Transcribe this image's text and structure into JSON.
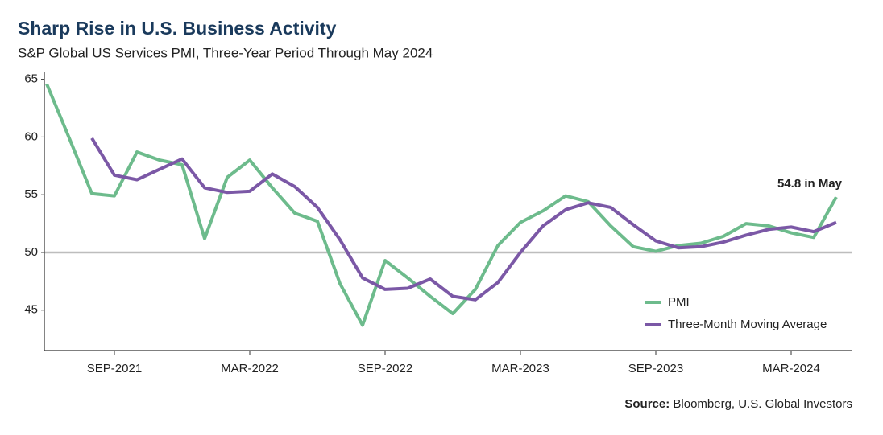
{
  "chart_data": {
    "type": "line",
    "title": "Sharp Rise in U.S. Business Activity",
    "subtitle": "S&P Global US Services PMI, Three-Year Period Through May 2024",
    "annotation": "54.8 in May",
    "source_label": "Source:",
    "source": "Bloomberg, U.S. Global Investors",
    "categories": [
      null,
      null,
      null,
      "SEP-2021",
      null,
      null,
      null,
      null,
      null,
      "MAR-2022",
      null,
      null,
      null,
      null,
      null,
      "SEP-2022",
      null,
      null,
      null,
      null,
      null,
      "MAR-2023",
      null,
      null,
      null,
      null,
      null,
      "SEP-2023",
      null,
      null,
      null,
      null,
      null,
      "MAR-2024",
      null,
      null
    ],
    "series": [
      {
        "name": "PMI",
        "color": "#6dbb8c",
        "values": [
          64.6,
          59.9,
          55.1,
          54.9,
          58.7,
          58.0,
          57.6,
          51.2,
          56.5,
          58.0,
          55.6,
          53.4,
          52.7,
          47.3,
          43.7,
          49.3,
          47.8,
          46.2,
          44.7,
          46.8,
          50.6,
          52.6,
          53.6,
          54.9,
          54.4,
          52.3,
          50.5,
          50.1,
          50.6,
          50.8,
          51.4,
          52.5,
          52.3,
          51.7,
          51.3,
          54.8
        ]
      },
      {
        "name": "Three-Month Moving Average",
        "color": "#7b58a6",
        "values": [
          null,
          null,
          59.9,
          56.7,
          56.3,
          57.2,
          58.1,
          55.6,
          55.2,
          55.3,
          56.8,
          55.7,
          53.9,
          51.1,
          47.8,
          46.8,
          46.9,
          47.7,
          46.2,
          45.9,
          47.4,
          50.0,
          52.3,
          53.7,
          54.3,
          53.9,
          52.4,
          51.0,
          50.4,
          50.5,
          50.9,
          51.5,
          52.0,
          52.2,
          51.8,
          52.6
        ]
      }
    ],
    "ylim": [
      41.5,
      65.6
    ],
    "yticks": [
      45,
      50,
      55,
      60,
      65
    ],
    "reference_line": 50,
    "reference_color": "#bdbdbd",
    "legend": "lower right"
  }
}
